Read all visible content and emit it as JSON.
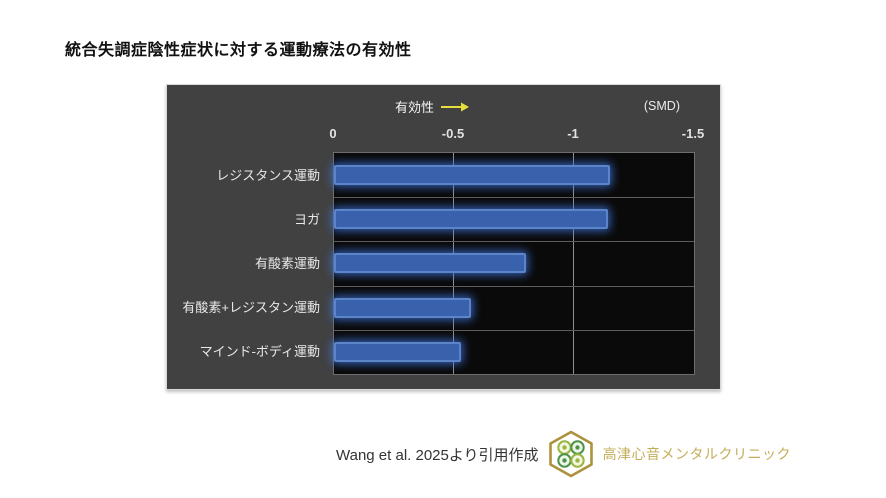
{
  "page": {
    "title": "統合失調症陰性症状に対する運動療法の有効性"
  },
  "chart": {
    "direction_label": "有効性",
    "unit_label": "(SMD)",
    "axis_ticks": [
      "0",
      "-0.5",
      "-1",
      "-1.5"
    ]
  },
  "chart_data": {
    "type": "bar",
    "orientation": "horizontal",
    "title": "統合失調症陰性症状に対する運動療法の有効性",
    "categories": [
      "レジスタンス運動",
      "ヨガ",
      "有酸素運動",
      "有酸素+レジスタン運動",
      "マインド-ボディ運動"
    ],
    "values": [
      -1.15,
      -1.14,
      -0.8,
      -0.57,
      -0.53
    ],
    "xlabel": "(SMD)",
    "xlim": [
      0,
      -1.5
    ],
    "ticks": [
      0,
      -0.5,
      -1,
      -1.5
    ],
    "grid": true,
    "annotation": "有効性 → (axis reversed: more negative SMD = more effective)",
    "legend_position": "none"
  },
  "footer": {
    "citation": "Wang et al. 2025より引用作成",
    "clinic_name": "高津心音メンタルクリニック"
  },
  "colors": {
    "bar_fill": "#3a62ac",
    "bar_border": "#5b84c9",
    "bar_glow": "#4076e0",
    "panel_bg": "#414141",
    "plot_bg": "#0a0a0a",
    "gridline_v": "#8f8f8f",
    "gridline_h": "#5e5e5e",
    "arrow_yellow": "#e8df3a",
    "logo_gold": "#ad923c",
    "logo_text_gold": "#c4ad58",
    "leaf_light_green": "#9ab63e",
    "leaf_dark_green": "#4c9347"
  }
}
